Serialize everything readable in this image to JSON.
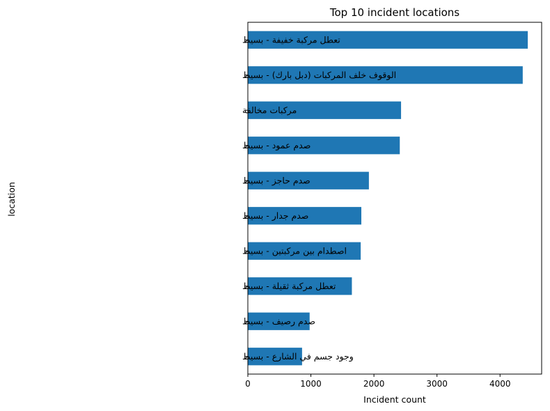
{
  "chart_data": {
    "type": "bar",
    "orientation": "horizontal",
    "title": "Top 10 incident locations",
    "xlabel": "Incident count",
    "ylabel": "location",
    "categories": [
      "تعطل مركبة خفيفة - بسيط",
      "الوقوف خلف المركبات (دبل بارك) - بسيط",
      "مركبات مخالفة",
      "صدم عمود - بسيط",
      "صدم حاجز - بسيط",
      "صدم جدار - بسيط",
      "اصطدام بين مركبتين - بسيط",
      "تعطل مركبة ثقيلة - بسيط",
      "صدم رصيف - بسيط",
      "وجود جسم في الشارع - بسيط"
    ],
    "values": [
      4440,
      4360,
      2430,
      2410,
      1920,
      1800,
      1790,
      1650,
      980,
      860
    ],
    "xlim": [
      0,
      4660
    ],
    "xticks": [
      0,
      1000,
      2000,
      3000,
      4000
    ],
    "bar_color": "#1f77b4",
    "grid": false,
    "legend": "none"
  }
}
